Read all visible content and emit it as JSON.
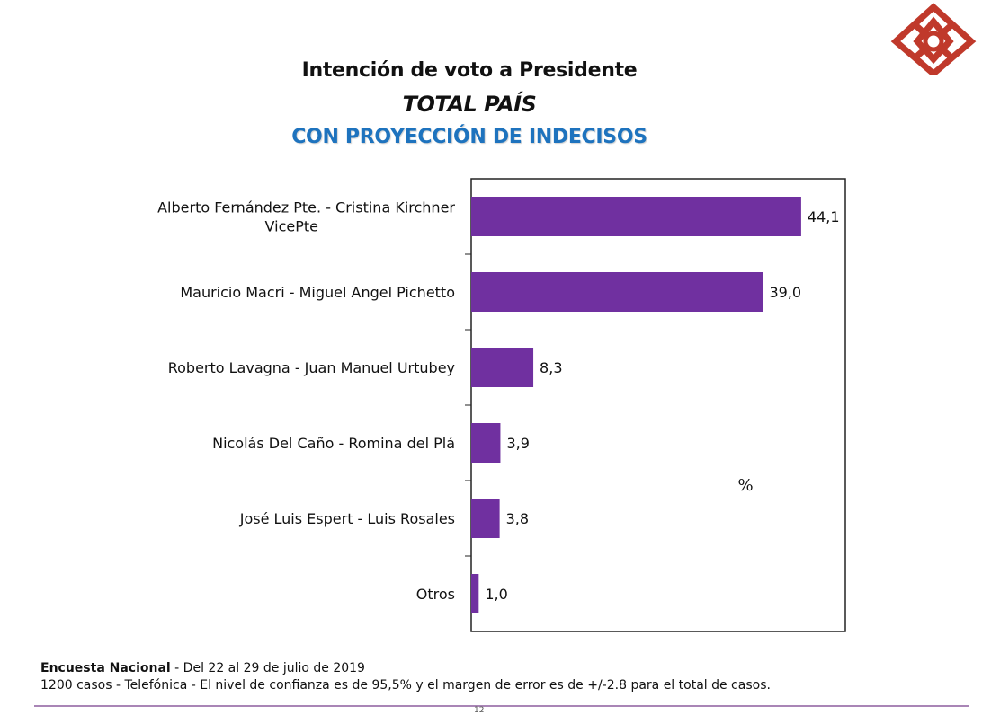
{
  "header": {
    "title": "Intención de voto a Presidente",
    "subtitle": "TOTAL PAÍS",
    "subtitle2": "CON PROYECCIÓN DE INDECISOS"
  },
  "logo": {
    "icon": "diamond-logo-icon",
    "color": "#c0392b"
  },
  "chart_data": {
    "type": "bar",
    "orientation": "horizontal",
    "categories": [
      [
        "Alberto Fernández Pte. - Cristina Kirchner",
        "VicePte"
      ],
      [
        "Mauricio Macri - Miguel Angel Pichetto"
      ],
      [
        "Roberto Lavagna - Juan Manuel Urtubey"
      ],
      [
        "Nicolás Del Caño - Romina del Plá"
      ],
      [
        "José Luis Espert - Luis Rosales"
      ],
      [
        "Otros"
      ]
    ],
    "values": [
      44.1,
      39.0,
      8.3,
      3.9,
      3.8,
      1.0
    ],
    "value_labels": [
      "44,1",
      "39,0",
      "8,3",
      "3,9",
      "3,8",
      "1,0"
    ],
    "unit_label": "%",
    "xlim": [
      0,
      50
    ],
    "bar_color": "#7030a0",
    "grid": false,
    "legend": "none"
  },
  "footer": {
    "line1_bold": "Encuesta Nacional",
    "line1_rest": " - Del 22  al 29 de julio  de 2019",
    "line2": "1200 casos - Telefónica  - El nivel de confianza es de 95,5% y el margen de error es de +/-2.8 para el total de casos.",
    "page_number": "12"
  }
}
